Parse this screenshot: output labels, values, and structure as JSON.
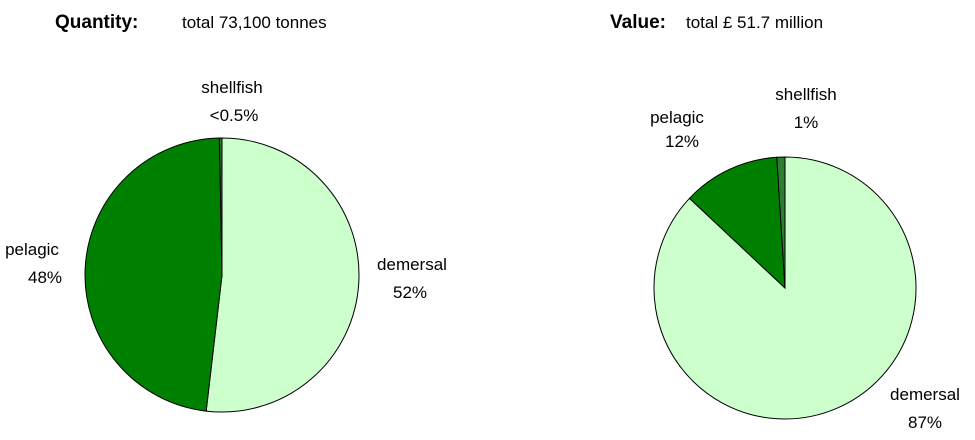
{
  "chart_data": [
    {
      "type": "pie",
      "title": "Quantity:",
      "subtitle": "total 73,100 tonnes",
      "categories": [
        "demersal",
        "pelagic",
        "shellfish"
      ],
      "values": [
        52,
        48,
        0.3
      ],
      "value_labels": [
        "52%",
        "48%",
        "<0.5%"
      ],
      "colors": [
        "#ccffcc",
        "#008000",
        "#2e7d32"
      ]
    },
    {
      "type": "pie",
      "title": "Value:",
      "subtitle": "total £ 51.7 million",
      "categories": [
        "demersal",
        "pelagic",
        "shellfish"
      ],
      "values": [
        87,
        12,
        1
      ],
      "value_labels": [
        "87%",
        "12%",
        "1%"
      ],
      "colors": [
        "#ccffcc",
        "#008000",
        "#2e7d32"
      ]
    }
  ]
}
